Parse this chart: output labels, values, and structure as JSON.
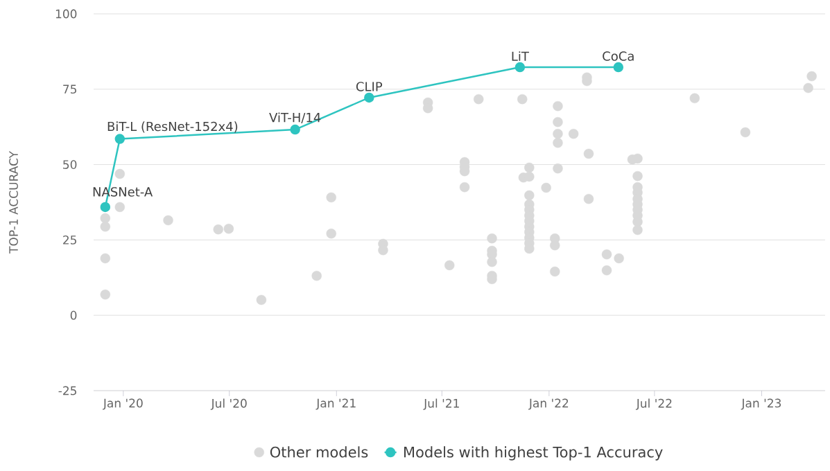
{
  "chart_data": {
    "type": "scatter",
    "ylabel": "TOP-1 ACCURACY",
    "xlim": [
      "2019-11-11",
      "2023-04-20"
    ],
    "ylim": [
      -25,
      100
    ],
    "yticks": [
      -25,
      0,
      25,
      50,
      75,
      100
    ],
    "xticks": [
      {
        "value": "2020-01-01",
        "label": "Jan '20"
      },
      {
        "value": "2020-07-01",
        "label": "Jul '20"
      },
      {
        "value": "2021-01-01",
        "label": "Jan '21"
      },
      {
        "value": "2021-07-01",
        "label": "Jul '21"
      },
      {
        "value": "2022-01-01",
        "label": "Jan '22"
      },
      {
        "value": "2022-07-01",
        "label": "Jul '22"
      },
      {
        "value": "2023-01-01",
        "label": "Jan '23"
      }
    ],
    "grid": "y",
    "legend": "bottom",
    "marker": "circle",
    "series": [
      {
        "name": "Other models",
        "color": "#d9d9d9",
        "x": [
          "2019-12-01",
          "2019-12-01",
          "2019-12-01",
          "2019-12-01",
          "2019-12-26",
          "2019-12-26",
          "2020-03-18",
          "2020-06-12",
          "2020-06-30",
          "2020-08-25",
          "2020-11-28",
          "2020-12-23",
          "2020-12-23",
          "2021-03-22",
          "2021-03-22",
          "2021-06-07",
          "2021-06-07",
          "2021-07-14",
          "2021-08-09",
          "2021-08-09",
          "2021-08-09",
          "2021-08-09",
          "2021-09-02",
          "2021-09-25",
          "2021-09-25",
          "2021-09-25",
          "2021-09-25",
          "2021-09-25",
          "2021-09-25",
          "2021-11-16",
          "2021-11-18",
          "2021-11-28",
          "2021-11-28",
          "2021-11-28",
          "2021-11-28",
          "2021-11-28",
          "2021-11-28",
          "2021-11-28",
          "2021-11-28",
          "2021-11-28",
          "2021-11-28",
          "2021-11-28",
          "2021-11-28",
          "2021-12-27",
          "2022-01-11",
          "2022-01-11",
          "2022-01-11",
          "2022-01-16",
          "2022-01-16",
          "2022-01-16",
          "2022-01-16",
          "2022-01-16",
          "2022-02-12",
          "2022-03-07",
          "2022-03-07",
          "2022-03-10",
          "2022-03-10",
          "2022-04-10",
          "2022-04-10",
          "2022-05-01",
          "2022-05-24",
          "2022-06-02",
          "2022-06-02",
          "2022-06-02",
          "2022-06-02",
          "2022-06-02",
          "2022-06-02",
          "2022-06-02",
          "2022-06-02",
          "2022-06-02",
          "2022-06-02",
          "2022-09-08",
          "2022-12-04",
          "2023-03-22",
          "2023-03-28"
        ],
        "values": [
          32.2,
          29.4,
          18.9,
          6.9,
          46.9,
          35.9,
          31.5,
          28.5,
          28.7,
          5.1,
          13.1,
          39.1,
          27.1,
          23.7,
          21.6,
          70.6,
          68.7,
          16.6,
          50.8,
          49.2,
          47.8,
          42.5,
          71.7,
          25.5,
          21.4,
          20.2,
          17.7,
          13.1,
          12.0,
          71.7,
          45.7,
          49.0,
          46.0,
          39.8,
          36.8,
          35.0,
          33.1,
          31.3,
          29.4,
          27.6,
          25.7,
          23.9,
          22.1,
          42.3,
          25.5,
          23.2,
          14.5,
          69.4,
          64.1,
          60.2,
          57.2,
          48.7,
          60.2,
          78.9,
          77.7,
          53.6,
          38.6,
          20.2,
          14.9,
          18.9,
          51.7,
          52.0,
          46.2,
          42.5,
          40.7,
          38.6,
          36.8,
          35.0,
          33.1,
          31.0,
          28.3,
          72.0,
          60.7,
          75.4,
          79.3
        ]
      },
      {
        "name": "Models with highest Top-1 Accuracy",
        "type": "line",
        "color": "#2ec4c0",
        "x": [
          "2019-12-01",
          "2019-12-26",
          "2020-10-22",
          "2021-02-26",
          "2021-11-12",
          "2022-04-30"
        ],
        "values": [
          35.9,
          58.5,
          61.6,
          72.2,
          82.3,
          82.3
        ]
      }
    ],
    "annotations": [
      {
        "text": "NASNet-A",
        "x": "2019-12-01",
        "y": 35.9
      },
      {
        "text": "BiT-L (ResNet-152x4)",
        "x": "2019-12-26",
        "y": 58.5
      },
      {
        "text": "ViT-H/14",
        "x": "2020-10-22",
        "y": 61.6
      },
      {
        "text": "CLIP",
        "x": "2021-02-26",
        "y": 72.2
      },
      {
        "text": "LiT",
        "x": "2021-11-12",
        "y": 82.3
      },
      {
        "text": "CoCa",
        "x": "2022-04-30",
        "y": 82.3
      }
    ]
  }
}
